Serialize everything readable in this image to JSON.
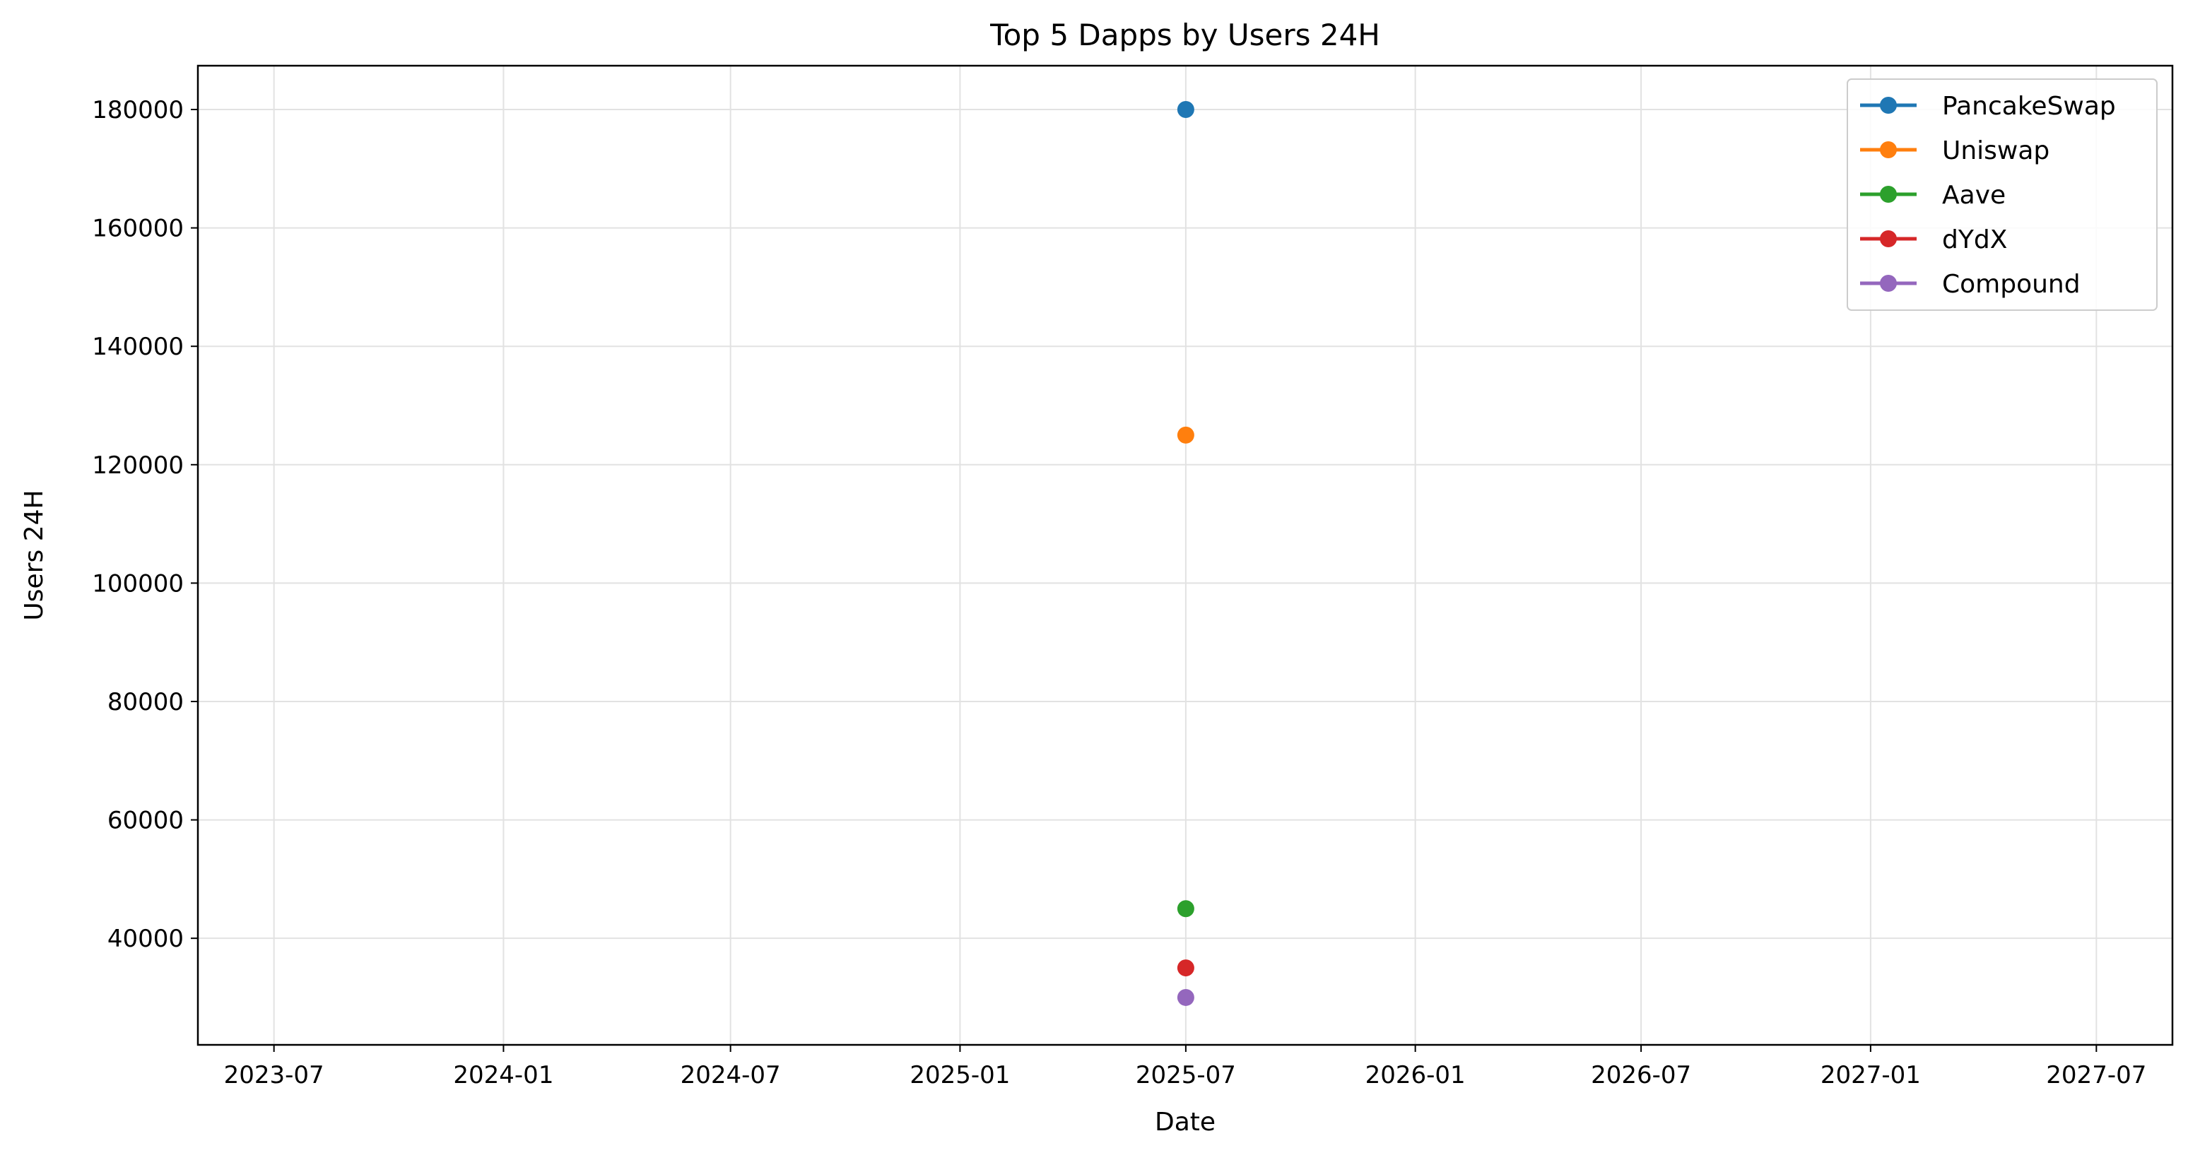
{
  "chart_data": {
    "type": "line",
    "title": "Top 5 Dapps by Users 24H",
    "xlabel": "Date",
    "ylabel": "Users 24H",
    "x_scale": "date",
    "xlim": [
      "2023-05-01",
      "2027-08-31"
    ],
    "ylim": [
      22000,
      187400
    ],
    "x_ticks": [
      "2023-07",
      "2024-01",
      "2024-07",
      "2025-01",
      "2025-07",
      "2026-01",
      "2026-07",
      "2027-01",
      "2027-07"
    ],
    "y_ticks": [
      40000,
      60000,
      80000,
      100000,
      120000,
      140000,
      160000,
      180000
    ],
    "grid": true,
    "legend_position": "top-right",
    "series": [
      {
        "name": "PancakeSwap",
        "color": "#1f77b4",
        "points": [
          {
            "x": "2025-07-01",
            "y": 180000
          }
        ]
      },
      {
        "name": "Uniswap",
        "color": "#ff7f0e",
        "points": [
          {
            "x": "2025-07-01",
            "y": 125000
          }
        ]
      },
      {
        "name": "Aave",
        "color": "#2ca02c",
        "points": [
          {
            "x": "2025-07-01",
            "y": 45000
          }
        ]
      },
      {
        "name": "dYdX",
        "color": "#d62728",
        "points": [
          {
            "x": "2025-07-01",
            "y": 35000
          }
        ]
      },
      {
        "name": "Compound",
        "color": "#9467bd",
        "points": [
          {
            "x": "2025-07-01",
            "y": 30000
          }
        ]
      }
    ]
  }
}
